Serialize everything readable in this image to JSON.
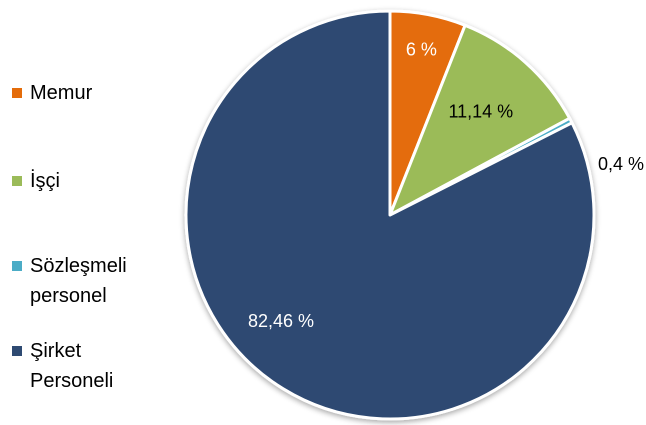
{
  "chart_data": {
    "type": "pie",
    "categories": [
      "Memur",
      "İşçi",
      "Sözleşmeli personel",
      "Şirket Personeli"
    ],
    "values": [
      6,
      11.14,
      0.4,
      82.46
    ],
    "labels": [
      "6 %",
      "11,14 %",
      "0,4 %",
      "82,46 %"
    ],
    "colors": [
      "#E46C0A",
      "#9BBB59",
      "#4BACC6",
      "#2E4A72"
    ],
    "label_colors": [
      "#ffffff",
      "#000000",
      "#000000",
      "#ffffff"
    ],
    "legend_placement": "left",
    "title": ""
  },
  "legend": {
    "items": [
      {
        "label": "Memur",
        "color": "#E46C0A"
      },
      {
        "label": "İşçi",
        "color": "#9BBB59"
      },
      {
        "label": "Sözleşmeli personel",
        "color": "#4BACC6"
      },
      {
        "label": "Şirket Personeli",
        "color": "#2E4A72"
      }
    ]
  }
}
